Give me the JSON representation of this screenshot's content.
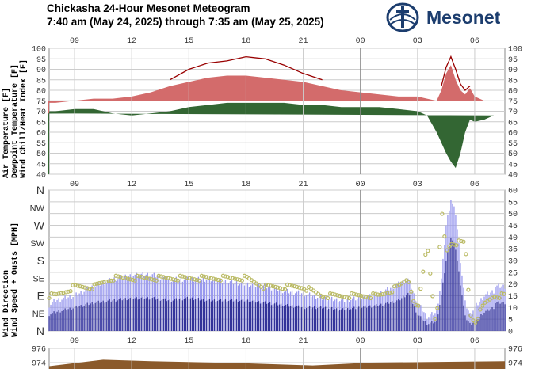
{
  "title_line1": "Chickasha 24-Hour Mesonet Meteogram",
  "title_line2": "7:40 am (May 24, 2025) through 7:35 am (May 25, 2025)",
  "logo_text": "Mesonet",
  "colors": {
    "air_temp": "#d36b6b",
    "dewpoint": "#336633",
    "heat_index": "#990000",
    "wind_speed": "#333399",
    "wind_gust": "#9999ee",
    "wind_dir": "#bbbb66",
    "pressure": "#8b5a2b",
    "grid": "#cccccc"
  },
  "time_ticks": [
    "09",
    "12",
    "15",
    "18",
    "21",
    "00",
    "03",
    "06"
  ],
  "panel1": {
    "y_ticks": [
      40,
      45,
      50,
      55,
      60,
      65,
      70,
      75,
      80,
      85,
      90,
      95,
      100
    ],
    "label_air": "Air Temperature [F]",
    "label_dew": "Dewpoint Temperature [F]",
    "label_chill": "Wind Chill/",
    "label_heat": "Heat Index [F]"
  },
  "panel2": {
    "dir_ticks": [
      "N",
      "NW",
      "W",
      "SW",
      "S",
      "SE",
      "E",
      "NE",
      "N"
    ],
    "speed_ticks": [
      0,
      5,
      10,
      15,
      20,
      25,
      30,
      35,
      40,
      45,
      50,
      55,
      60
    ],
    "label_dir": "Wind Direction",
    "label_speed": "Wind Speed + Gusts [MPH]"
  },
  "panel3": {
    "p_ticks": [
      976,
      974
    ]
  },
  "chart_data": [
    {
      "type": "area",
      "x": [
        "07:40",
        "08:00",
        "09:00",
        "10:00",
        "11:00",
        "12:00",
        "13:00",
        "14:00",
        "15:00",
        "16:00",
        "17:00",
        "18:00",
        "19:00",
        "20:00",
        "21:00",
        "22:00",
        "23:00",
        "00:00",
        "01:00",
        "02:00",
        "03:00",
        "03:30",
        "04:00",
        "04:15",
        "04:30",
        "04:45",
        "05:00",
        "05:15",
        "05:30",
        "05:45",
        "06:00",
        "06:30",
        "07:00",
        "07:35"
      ],
      "series": [
        {
          "name": "Air Temperature [F]",
          "values": [
            74,
            74,
            75,
            76,
            76,
            77,
            79,
            82,
            84,
            86,
            87,
            87,
            86,
            85,
            84,
            82,
            80,
            79,
            78,
            77,
            77,
            76,
            75,
            80,
            88,
            92,
            85,
            80,
            78,
            81,
            77,
            75,
            75,
            75
          ]
        },
        {
          "name": "Dewpoint Temperature [F]",
          "values": [
            70,
            70,
            71,
            71,
            69,
            68,
            69,
            70,
            72,
            73,
            74,
            74,
            74,
            74,
            73,
            73,
            72,
            72,
            72,
            71,
            70,
            68,
            60,
            55,
            50,
            46,
            43,
            50,
            60,
            66,
            65,
            66,
            68,
            69
          ]
        },
        {
          "name": "Heat Index [F]",
          "values": [
            null,
            null,
            null,
            null,
            null,
            null,
            null,
            85,
            90,
            93,
            94,
            96,
            95,
            92,
            88,
            85,
            null,
            null,
            null,
            null,
            null,
            null,
            null,
            82,
            91,
            96,
            90,
            83,
            80,
            82,
            null,
            null,
            null,
            null
          ]
        }
      ],
      "ylim": [
        40,
        100
      ]
    },
    {
      "type": "bar",
      "x": [
        "07:40",
        "08:00",
        "09:00",
        "10:00",
        "11:00",
        "12:00",
        "13:00",
        "14:00",
        "15:00",
        "16:00",
        "17:00",
        "18:00",
        "19:00",
        "20:00",
        "21:00",
        "22:00",
        "23:00",
        "00:00",
        "01:00",
        "02:00",
        "02:30",
        "03:00",
        "03:30",
        "04:00",
        "04:15",
        "04:30",
        "04:45",
        "05:00",
        "05:15",
        "05:30",
        "05:45",
        "06:00",
        "06:30",
        "07:00",
        "07:35"
      ],
      "series": [
        {
          "name": "Wind Speed [MPH]",
          "values": [
            7,
            8,
            10,
            12,
            13,
            14,
            14,
            13,
            14,
            13,
            13,
            13,
            12,
            11,
            10,
            10,
            9,
            10,
            11,
            13,
            16,
            7,
            3,
            4,
            15,
            30,
            40,
            35,
            20,
            6,
            3,
            4,
            8,
            10,
            12
          ]
        },
        {
          "name": "Gusts [MPH]",
          "values": [
            11,
            13,
            15,
            19,
            22,
            24,
            24,
            22,
            22,
            22,
            21,
            20,
            19,
            17,
            16,
            14,
            13,
            14,
            16,
            20,
            22,
            12,
            6,
            8,
            22,
            45,
            56,
            50,
            30,
            12,
            7,
            10,
            15,
            17,
            19
          ]
        },
        {
          "name": "Wind Direction",
          "values": [
            "E",
            "E",
            "ESE",
            "ESE",
            "SE",
            "SE",
            "SE",
            "SE",
            "SE",
            "SE",
            "SE",
            "SE",
            "ESE",
            "ESE",
            "ESE",
            "E",
            "E",
            "E",
            "E",
            "ESE",
            "SE",
            "NE",
            "SW",
            "N",
            "NW",
            "SSW",
            "SW",
            "SW",
            "SW",
            "SW",
            "NE",
            "NNE",
            "ENE",
            "E",
            "E"
          ]
        }
      ],
      "ylim": [
        0,
        60
      ]
    },
    {
      "type": "area",
      "series": [
        {
          "name": "Pressure",
          "values": [
            973.5,
            974.4,
            974.2,
            973.9,
            973.6,
            974.0,
            974.2
          ]
        }
      ]
    }
  ]
}
